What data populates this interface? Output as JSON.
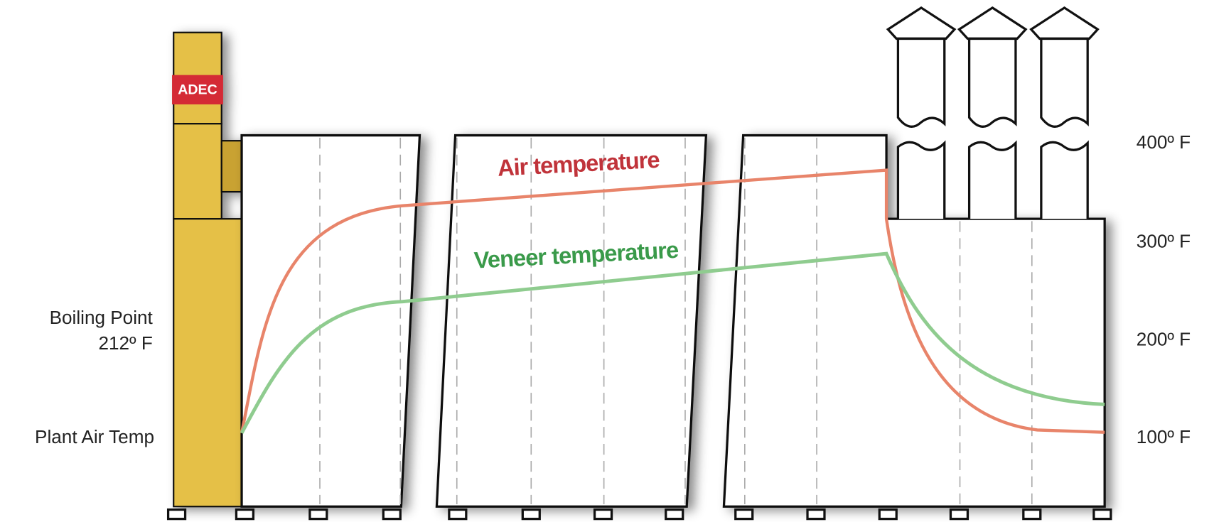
{
  "equipment": {
    "label": "ADEC"
  },
  "curves": [
    {
      "label": "Air temperature"
    },
    {
      "label": "Veneer temperature"
    }
  ],
  "left_labels": {
    "boiling_point": [
      "Boiling Point",
      "212º F"
    ],
    "plant_air": "Plant Air Temp"
  },
  "right_scale": [
    "400º F",
    "300º F",
    "200º F",
    "100º F"
  ]
}
